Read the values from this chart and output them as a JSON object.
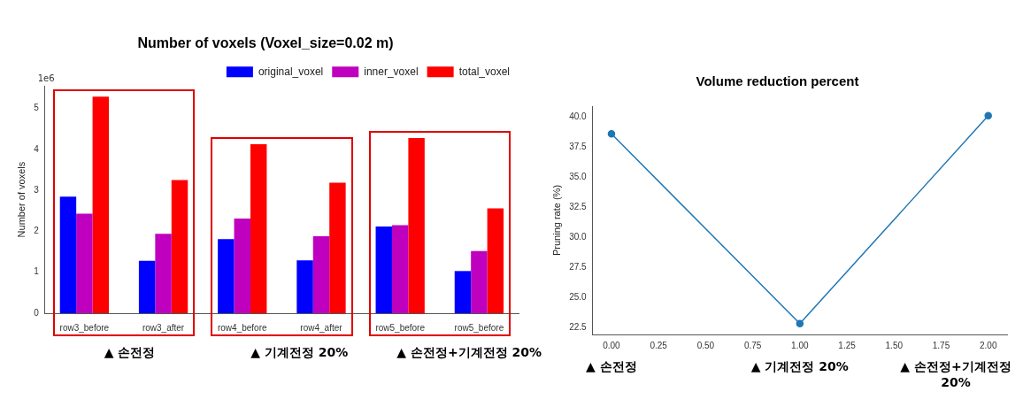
{
  "chart_data": [
    {
      "type": "bar",
      "title": "Number of voxels (Voxel_size=0.02 m)",
      "ylabel": "Number of voxels",
      "categories": [
        "row3_before",
        "row3_after",
        "row4_before",
        "row4_after",
        "row5_before",
        "row5_before"
      ],
      "series": [
        {
          "name": "original_voxel",
          "color": "#0000ff",
          "values": [
            2.85,
            1.28,
            1.81,
            1.29,
            2.12,
            1.03
          ]
        },
        {
          "name": "inner_voxel",
          "color": "#bf00bf",
          "values": [
            2.43,
            1.94,
            2.31,
            1.88,
            2.15,
            1.52
          ]
        },
        {
          "name": "total_voxel",
          "color": "#ff0000",
          "values": [
            5.29,
            3.25,
            4.13,
            3.19,
            4.28,
            2.56
          ]
        }
      ],
      "ylim": [
        0,
        5.55
      ],
      "yticks": [
        0,
        1,
        2,
        3,
        4,
        5
      ],
      "legend": "top right",
      "grid": false,
      "annotations": [
        "1e6",
        "▲ 손전정",
        "▲ 기계전정 20%",
        "▲ 손전정+기계전정 20%"
      ]
    },
    {
      "type": "line",
      "title": "Volume reduction percent",
      "ylabel": "Pruning rate (%)",
      "x": [
        0,
        1,
        2
      ],
      "series": [
        {
          "color": "#1f77b4",
          "values": [
            38.6,
            22.8,
            40.1
          ]
        }
      ],
      "xlim": [
        -0.1,
        2.1
      ],
      "xticks": [
        {
          "value": 0,
          "label": "0.00"
        },
        {
          "value": 0.25,
          "label": "0.25"
        },
        {
          "value": 0.5,
          "label": "0.50"
        },
        {
          "value": 0.75,
          "label": "0.75"
        },
        {
          "value": 1,
          "label": "1.00"
        },
        {
          "value": 1.25,
          "label": "1.25"
        },
        {
          "value": 1.5,
          "label": "1.50"
        },
        {
          "value": 1.75,
          "label": "1.75"
        },
        {
          "value": 2,
          "label": "2.00"
        }
      ],
      "ylim": [
        21.9,
        40.9
      ],
      "yticks": [
        {
          "value": 22.5,
          "label": "22.5"
        },
        {
          "value": 25,
          "label": "25.0"
        },
        {
          "value": 27.5,
          "label": "27.5"
        },
        {
          "value": 30,
          "label": "30.0"
        },
        {
          "value": 32.5,
          "label": "32.5"
        },
        {
          "value": 35,
          "label": "35.0"
        },
        {
          "value": 37.5,
          "label": "37.5"
        },
        {
          "value": 40,
          "label": "40.0"
        }
      ],
      "marker": "circle",
      "line_style": "solid",
      "legend": false,
      "grid": false,
      "annotations": [
        "▲ 손전정",
        "▲ 기계전정 20%",
        "▲ 손전정+기계전정 20%"
      ]
    }
  ]
}
